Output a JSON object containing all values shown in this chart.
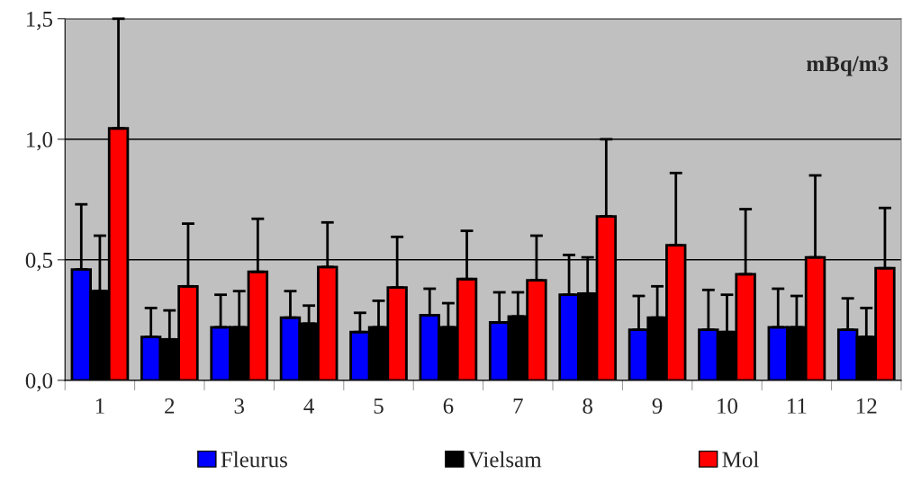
{
  "chart_data": {
    "type": "bar",
    "categories": [
      "1",
      "2",
      "3",
      "4",
      "5",
      "6",
      "7",
      "8",
      "9",
      "10",
      "11",
      "12"
    ],
    "series": [
      {
        "name": "Fleurus",
        "color": "#0000ff",
        "values": [
          0.46,
          0.18,
          0.22,
          0.26,
          0.2,
          0.27,
          0.24,
          0.355,
          0.21,
          0.21,
          0.22,
          0.21
        ],
        "errors": [
          [
            0.46,
            0.73
          ],
          [
            0.18,
            0.3
          ],
          [
            0.22,
            0.355
          ],
          [
            0.26,
            0.37
          ],
          [
            0.2,
            0.28
          ],
          [
            0.27,
            0.38
          ],
          [
            0.24,
            0.365
          ],
          [
            0.355,
            0.52
          ],
          [
            0.21,
            0.35
          ],
          [
            0.21,
            0.375
          ],
          [
            0.22,
            0.38
          ],
          [
            0.21,
            0.34
          ]
        ]
      },
      {
        "name": "Vielsam",
        "color": "#000000",
        "values": [
          0.37,
          0.17,
          0.22,
          0.235,
          0.22,
          0.22,
          0.265,
          0.36,
          0.26,
          0.2,
          0.22,
          0.18
        ],
        "errors": [
          [
            0.37,
            0.6
          ],
          [
            0.17,
            0.29
          ],
          [
            0.22,
            0.37
          ],
          [
            0.235,
            0.31
          ],
          [
            0.22,
            0.33
          ],
          [
            0.22,
            0.32
          ],
          [
            0.265,
            0.365
          ],
          [
            0.36,
            0.51
          ],
          [
            0.26,
            0.39
          ],
          [
            0.2,
            0.355
          ],
          [
            0.22,
            0.35
          ],
          [
            0.18,
            0.3
          ]
        ]
      },
      {
        "name": "Mol",
        "color": "#ff0000",
        "values": [
          1.045,
          0.39,
          0.45,
          0.47,
          0.385,
          0.42,
          0.415,
          0.68,
          0.56,
          0.44,
          0.51,
          0.465
        ],
        "errors": [
          [
            1.045,
            1.5
          ],
          [
            0.39,
            0.65
          ],
          [
            0.45,
            0.67
          ],
          [
            0.47,
            0.655
          ],
          [
            0.385,
            0.595
          ],
          [
            0.42,
            0.62
          ],
          [
            0.415,
            0.6
          ],
          [
            0.68,
            1.0
          ],
          [
            0.56,
            0.86
          ],
          [
            0.44,
            0.71
          ],
          [
            0.51,
            0.85
          ],
          [
            0.465,
            0.715
          ]
        ]
      }
    ],
    "ylim": [
      0,
      1.5
    ],
    "yticks": [
      {
        "value": 0,
        "label": "0,0"
      },
      {
        "value": 0.5,
        "label": "0,5"
      },
      {
        "value": 1.0,
        "label": "1,0"
      },
      {
        "value": 1.5,
        "label": "1,5"
      }
    ],
    "grid": "y",
    "legend": "bottom",
    "annotations": [
      "mBq/m3"
    ]
  }
}
